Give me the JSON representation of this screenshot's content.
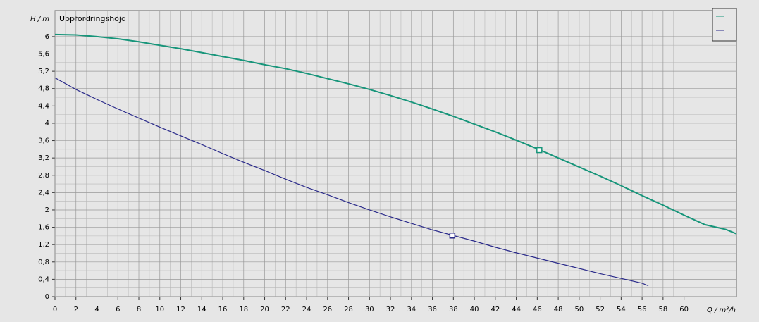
{
  "chart_data": {
    "type": "line",
    "annotation": "Uppfordringshöjd",
    "y_label": "H / m",
    "x_label": "Q / m³/h",
    "xlim": [
      0,
      65
    ],
    "ylim": [
      0,
      6.6
    ],
    "xticks": [
      0,
      2,
      4,
      6,
      8,
      10,
      12,
      14,
      16,
      18,
      20,
      22,
      24,
      26,
      28,
      30,
      32,
      34,
      36,
      38,
      40,
      42,
      44,
      46,
      48,
      50,
      52,
      54,
      56,
      58,
      60
    ],
    "yticks": [
      0,
      {
        "value": 0.4,
        "label": "0,4"
      },
      {
        "value": 0.8,
        "label": "0,8"
      },
      {
        "value": 1.2,
        "label": "1,2"
      },
      {
        "value": 1.6,
        "label": "1,6"
      },
      2,
      {
        "value": 2.4,
        "label": "2,4"
      },
      {
        "value": 2.8,
        "label": "2,8"
      },
      {
        "value": 3.2,
        "label": "3,2"
      },
      {
        "value": 3.6,
        "label": "3,6"
      },
      4,
      {
        "value": 4.4,
        "label": "4,4"
      },
      {
        "value": 4.8,
        "label": "4,8"
      },
      {
        "value": 5.2,
        "label": "5,2"
      },
      {
        "value": 5.6,
        "label": "5,6"
      },
      6
    ],
    "grid": true,
    "legend": "top-right",
    "series": [
      {
        "name": "II",
        "color": "#17957a",
        "x": [
          0,
          2,
          4,
          6,
          8,
          10,
          12,
          14,
          16,
          18,
          20,
          22,
          24,
          26,
          28,
          30,
          32,
          34,
          36,
          38,
          40,
          42,
          44,
          46,
          48,
          50,
          52,
          54,
          56,
          58,
          60,
          62,
          64,
          65
        ],
        "values": [
          6.05,
          6.04,
          6.0,
          5.95,
          5.88,
          5.8,
          5.72,
          5.63,
          5.54,
          5.45,
          5.35,
          5.26,
          5.15,
          5.03,
          4.91,
          4.78,
          4.64,
          4.49,
          4.33,
          4.16,
          3.98,
          3.8,
          3.61,
          3.41,
          3.2,
          2.99,
          2.78,
          2.56,
          2.33,
          2.11,
          1.88,
          1.66,
          1.55,
          1.45
        ],
        "point": {
          "x": 46.2,
          "y": 3.38
        }
      },
      {
        "name": "I",
        "color": "#2a2a8a",
        "x": [
          0,
          2,
          4,
          6,
          8,
          10,
          12,
          14,
          16,
          18,
          20,
          22,
          24,
          26,
          28,
          30,
          32,
          34,
          36,
          38,
          40,
          42,
          44,
          46,
          48,
          50,
          52,
          54,
          56,
          56.6
        ],
        "values": [
          5.05,
          4.78,
          4.55,
          4.33,
          4.12,
          3.91,
          3.71,
          3.51,
          3.3,
          3.1,
          2.91,
          2.71,
          2.52,
          2.35,
          2.17,
          2.0,
          1.84,
          1.69,
          1.54,
          1.41,
          1.28,
          1.14,
          1.01,
          0.89,
          0.77,
          0.65,
          0.53,
          0.42,
          0.31,
          0.25
        ],
        "point": {
          "x": 37.9,
          "y": 1.41
        }
      }
    ]
  }
}
